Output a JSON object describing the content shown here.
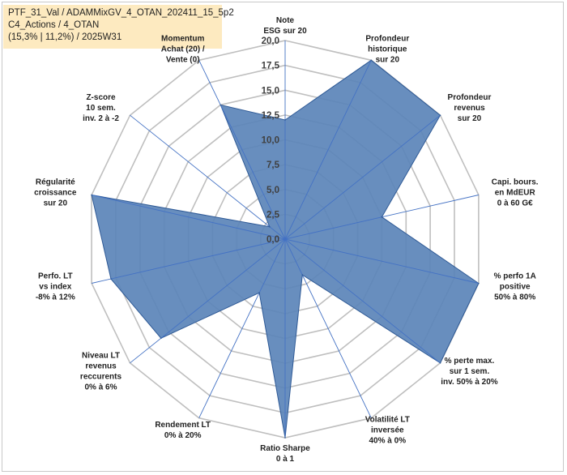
{
  "title_lines": [
    "PTF_31_Val / ADAMMixGV_4_OTAN_202411_15_5p2",
    "C4_Actions / 4_OTAN",
    "(15,3% | 11,2%) / 2025W31"
  ],
  "colors": {
    "fill": "#5b84b8",
    "stroke": "#2f5a96",
    "grid": "#bfbfbf",
    "spoke": "#4472c4",
    "title_bg": "#fdeac0"
  },
  "chart_data": {
    "type": "radar",
    "title": "",
    "rmax": 20,
    "tick_values": [
      0,
      2.5,
      5,
      7.5,
      10,
      12.5,
      15,
      17.5,
      20
    ],
    "tick_labels": [
      "0,0",
      "2,5",
      "5,0",
      "7,5",
      "10,0",
      "12,5",
      "15,0",
      "17,5",
      "20,0"
    ],
    "grid": true,
    "axes": [
      {
        "label": [
          "Note",
          "ESG sur 20"
        ],
        "value": 12
      },
      {
        "label": [
          "Profondeur",
          "historique",
          "sur 20"
        ],
        "value": 20
      },
      {
        "label": [
          "Profondeur",
          "revenus",
          "sur 20"
        ],
        "value": 20
      },
      {
        "label": [
          "Capi. bours.",
          "en MdEUR",
          "0 à 60 G€"
        ],
        "value": 10
      },
      {
        "label": [
          "% perfo 1A",
          "positive",
          "50% à 80%"
        ],
        "value": 20
      },
      {
        "label": [
          "% perte max.",
          "sur 1 sem.",
          "inv. 50% à 20%"
        ],
        "value": 20
      },
      {
        "label": [
          "Volatilité LT",
          "inversée",
          "40% à 0%"
        ],
        "value": 4
      },
      {
        "label": [
          "Ratio Sharpe",
          "0 à 1"
        ],
        "value": 20
      },
      {
        "label": [
          "Rendement LT",
          "0% à 20%"
        ],
        "value": 6
      },
      {
        "label": [
          "Niveau LT",
          "revenus",
          "reccurents",
          "0% à 6%"
        ],
        "value": 16
      },
      {
        "label": [
          "Perfo. LT",
          "vs index",
          "-8% à 12%"
        ],
        "value": 18
      },
      {
        "label": [
          "Régularité",
          "croissance",
          "sur 20"
        ],
        "value": 20
      },
      {
        "label": [
          "Z-score",
          "10 sem.",
          "inv. 2 à -2"
        ],
        "value": 2
      },
      {
        "label": [
          "Momentum",
          "Achat (20) /",
          "Vente (0)"
        ],
        "value": 15
      }
    ]
  }
}
